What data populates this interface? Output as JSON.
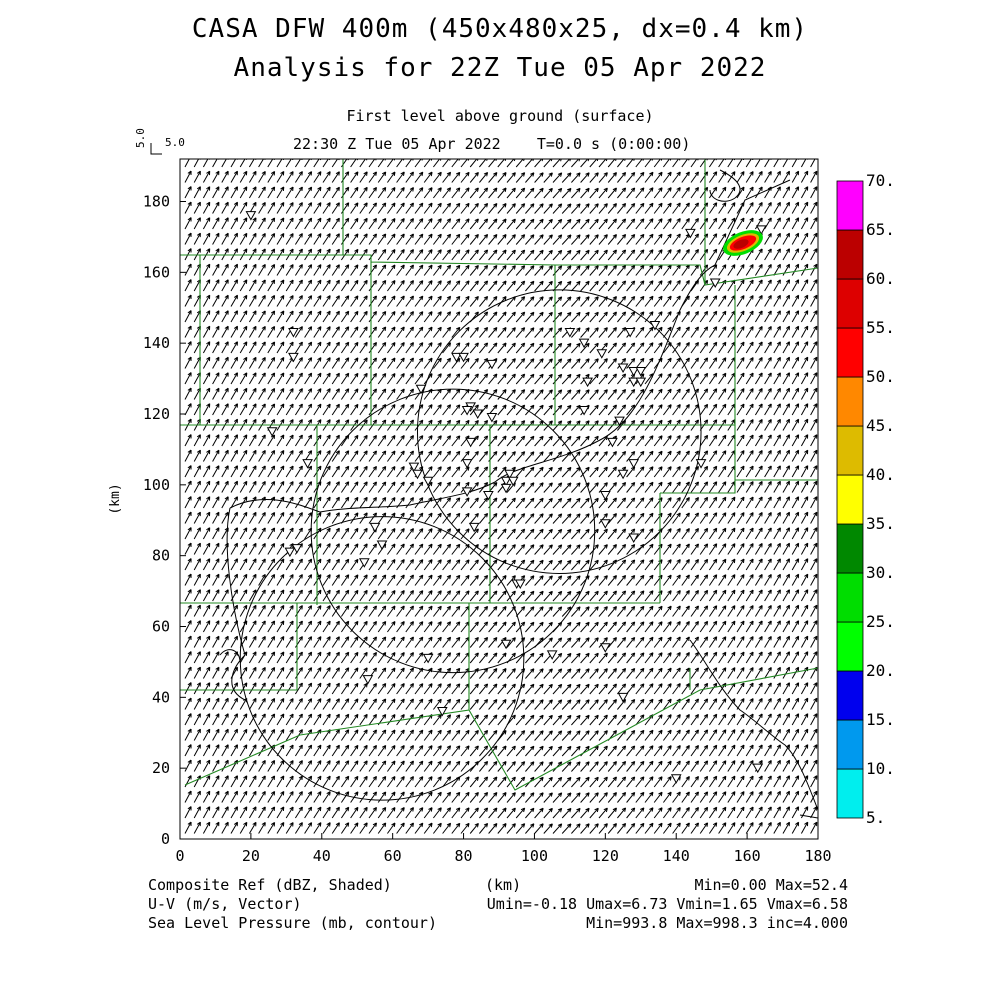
{
  "title": {
    "line1": "CASA DFW 400m (450x480x25, dx=0.4 km)",
    "line2": "Analysis for 22Z Tue 05 Apr 2022"
  },
  "subtitle": {
    "level": "First level above ground (surface)",
    "time": "22:30 Z Tue 05 Apr 2022    T=0.0 s (0:00:00)"
  },
  "vector_ref": {
    "label": "5.0",
    "value": 5.0
  },
  "axes": {
    "xlabel": "(km)",
    "ylabel": "(km)",
    "xlim": [
      0,
      180
    ],
    "ylim": [
      0,
      192
    ],
    "xticks": [
      0,
      20,
      40,
      60,
      80,
      100,
      120,
      140,
      160,
      180
    ],
    "yticks": [
      0,
      20,
      40,
      60,
      80,
      100,
      120,
      140,
      160,
      180
    ]
  },
  "colorbar": {
    "levels": [
      "5.",
      "10.",
      "15.",
      "20.",
      "25.",
      "30.",
      "35.",
      "40.",
      "45.",
      "50.",
      "55.",
      "60.",
      "65.",
      "70."
    ],
    "colors": [
      "#00eeee",
      "#0099ee",
      "#0000ee",
      "#00ff00",
      "#00dd00",
      "#008800",
      "#ffff00",
      "#ddbb00",
      "#ff8800",
      "#ff0000",
      "#dd0000",
      "#bb0000",
      "#ff00ff"
    ]
  },
  "footer": {
    "left": [
      "Composite Ref (dBZ, Shaded)",
      "U-V (m/s, Vector)",
      "Sea Level Pressure (mb, contour)"
    ],
    "center": "(km)",
    "right": [
      "Min=0.00 Max=52.4",
      "Umin=-0.18 Umax=6.73 Vmin=1.65 Vmax=6.58",
      "Min=993.8 Max=998.3 inc=4.000"
    ]
  },
  "chart_data": {
    "type": "map",
    "fields": [
      "Composite Ref (dBZ, Shaded)",
      "U-V (m/s, Vector)",
      "Sea Level Pressure (mb, contour)"
    ],
    "reflectivity": {
      "min": 0.0,
      "max": 52.4,
      "cell_center_km": [
        160,
        168
      ]
    },
    "wind": {
      "umin": -0.18,
      "umax": 6.73,
      "vmin": 1.65,
      "vmax": 6.58
    },
    "pressure": {
      "min": 993.8,
      "max": 998.3,
      "inc": 4.0
    },
    "radar_range_rings_km": [
      {
        "center": [
          107,
          115
        ],
        "radius": 40
      },
      {
        "center": [
          77,
          87
        ],
        "radius": 40
      },
      {
        "center": [
          57,
          51
        ],
        "radius": 40
      }
    ],
    "radar_sites_km": [
      [
        32,
        143
      ],
      [
        32,
        136
      ],
      [
        26,
        115
      ],
      [
        36,
        106
      ],
      [
        33,
        82
      ],
      [
        31,
        81
      ],
      [
        20,
        176
      ],
      [
        68,
        127
      ],
      [
        66,
        105
      ],
      [
        67,
        103
      ],
      [
        70,
        101
      ],
      [
        78,
        136
      ],
      [
        80,
        136
      ],
      [
        82,
        122
      ],
      [
        81,
        121
      ],
      [
        84,
        120
      ],
      [
        88,
        119
      ],
      [
        82,
        112
      ],
      [
        81,
        106
      ],
      [
        88,
        134
      ],
      [
        93,
        103
      ],
      [
        92,
        101
      ],
      [
        94,
        101
      ],
      [
        92,
        99
      ],
      [
        87,
        97
      ],
      [
        81,
        98
      ],
      [
        83,
        88
      ],
      [
        55,
        88
      ],
      [
        57,
        83
      ],
      [
        52,
        78
      ],
      [
        53,
        45
      ],
      [
        70,
        51
      ],
      [
        74,
        36
      ],
      [
        92,
        55
      ],
      [
        95,
        72
      ],
      [
        96,
        72
      ],
      [
        105,
        52
      ],
      [
        110,
        143
      ],
      [
        114,
        140
      ],
      [
        114,
        121
      ],
      [
        115,
        129
      ],
      [
        119,
        137
      ],
      [
        122,
        112
      ],
      [
        125,
        133
      ],
      [
        127,
        143
      ],
      [
        128,
        132
      ],
      [
        130,
        132
      ],
      [
        128,
        129
      ],
      [
        130,
        129
      ],
      [
        124,
        118
      ],
      [
        125,
        103
      ],
      [
        120,
        97
      ],
      [
        120,
        89
      ],
      [
        128,
        106
      ],
      [
        128,
        85
      ],
      [
        120,
        54
      ],
      [
        125,
        40
      ],
      [
        134,
        145
      ],
      [
        144,
        171
      ],
      [
        147,
        106
      ],
      [
        151,
        157
      ],
      [
        164,
        172
      ],
      [
        140,
        17
      ],
      [
        163,
        20
      ]
    ]
  }
}
